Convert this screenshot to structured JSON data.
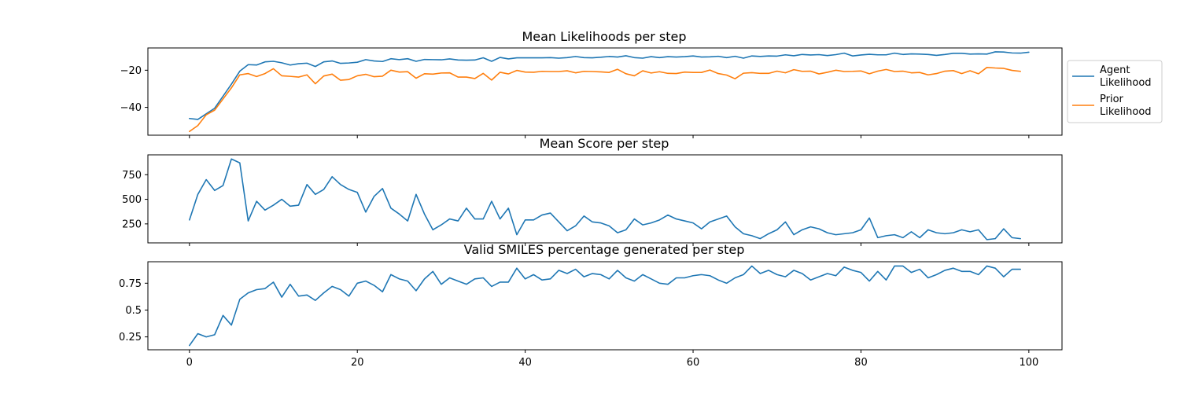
{
  "chart_data": [
    {
      "type": "line",
      "title": "Mean Likelihoods per step",
      "xlim": [
        -4.95,
        103.95
      ],
      "ylim": [
        -55,
        -8
      ],
      "yticks": [
        -40,
        -20
      ],
      "xticks": [
        0,
        20,
        40,
        60,
        80,
        100
      ],
      "show_xtick_labels": false,
      "grid": false,
      "legend_placement": "outside-right",
      "series": [
        {
          "name": "Agent\nLikelihood",
          "color": "#1f77b4",
          "y": [
            -46,
            -46.5,
            -43.5,
            -40.5,
            -34,
            -27.5,
            -20.5,
            -17,
            -17.2,
            -15.5,
            -15.2,
            -16,
            -17.2,
            -16.5,
            -16.2,
            -18,
            -15.5,
            -15,
            -16.3,
            -16.1,
            -15.7,
            -14.3,
            -15,
            -15.3,
            -13.8,
            -14.3,
            -13.8,
            -15.2,
            -14.2,
            -14.3,
            -14.4,
            -13.9,
            -14.5,
            -14.6,
            -14.5,
            -13.3,
            -15.2,
            -13.1,
            -13.9,
            -13.3,
            -13.3,
            -13.3,
            -13.3,
            -13.2,
            -13.5,
            -13.2,
            -12.6,
            -13.2,
            -13.3,
            -13,
            -12.6,
            -12.9,
            -12.2,
            -13.2,
            -13.5,
            -12.7,
            -13.2,
            -12.7,
            -12.9,
            -12.7,
            -12.3,
            -12.9,
            -12.8,
            -12.5,
            -13.2,
            -12.5,
            -13.5,
            -12.3,
            -12.6,
            -12.3,
            -12.4,
            -11.7,
            -12.2,
            -11.5,
            -11.8,
            -11.6,
            -12.1,
            -11.6,
            -10.8,
            -12.3,
            -11.8,
            -11.4,
            -11.7,
            -11.7,
            -10.8,
            -11.5,
            -11.2,
            -11.3,
            -11.5,
            -12,
            -11.5,
            -10.9,
            -10.9,
            -11.3,
            -11.2,
            -11.3,
            -10.1,
            -10.2,
            -10.7,
            -10.8,
            -10.3
          ]
        },
        {
          "name": "Prior\nLikelihood",
          "color": "#ff7f0e",
          "y": [
            -53,
            -49.8,
            -44,
            -41.5,
            -35.5,
            -29.5,
            -22.5,
            -21.8,
            -23.4,
            -21.8,
            -19.2,
            -23,
            -23.3,
            -23.7,
            -22.5,
            -27.3,
            -23.1,
            -22.1,
            -25.4,
            -25,
            -23,
            -22.2,
            -23.5,
            -23.2,
            -20,
            -21,
            -20.8,
            -24.3,
            -21.9,
            -22.1,
            -21.5,
            -21.4,
            -23.7,
            -23.7,
            -24.5,
            -21.7,
            -25.3,
            -21.1,
            -22,
            -20.1,
            -21,
            -21.1,
            -20.6,
            -20.7,
            -20.7,
            -20.3,
            -21.4,
            -20.6,
            -20.7,
            -20.9,
            -21.2,
            -19.5,
            -21.9,
            -23,
            -20.3,
            -21.5,
            -20.8,
            -21.7,
            -21.8,
            -21,
            -21.2,
            -21.2,
            -19.9,
            -21.8,
            -22.6,
            -24.6,
            -21.6,
            -21.3,
            -21.7,
            -21.7,
            -20.5,
            -21.4,
            -19.7,
            -20.6,
            -20.5,
            -22,
            -21.1,
            -20,
            -20.7,
            -20.6,
            -20.4,
            -21.9,
            -20.5,
            -19.6,
            -20.7,
            -20.5,
            -21.4,
            -21.2,
            -22.5,
            -21.8,
            -20.5,
            -20.2,
            -21.8,
            -20.3,
            -21.9,
            -18.5,
            -18.8,
            -19,
            -20.1,
            -20.6
          ]
        }
      ]
    },
    {
      "type": "line",
      "title": "Mean Score per step",
      "xlim": [
        -4.95,
        103.95
      ],
      "ylim": [
        57,
        952
      ],
      "yticks": [
        250,
        500,
        750
      ],
      "xticks": [
        0,
        20,
        40,
        60,
        80,
        100
      ],
      "show_xtick_labels": false,
      "grid": false,
      "series": [
        {
          "color": "#1f77b4",
          "y": [
            290,
            550,
            700,
            590,
            640,
            910,
            870,
            280,
            480,
            390,
            440,
            500,
            430,
            440,
            650,
            550,
            600,
            730,
            650,
            600,
            570,
            370,
            530,
            610,
            410,
            350,
            280,
            550,
            350,
            190,
            240,
            300,
            280,
            410,
            300,
            300,
            480,
            300,
            410,
            140,
            290,
            290,
            340,
            360,
            270,
            180,
            230,
            330,
            270,
            260,
            230,
            160,
            190,
            300,
            240,
            260,
            290,
            340,
            300,
            280,
            260,
            200,
            270,
            300,
            330,
            220,
            150,
            130,
            100,
            150,
            190,
            270,
            140,
            190,
            220,
            200,
            160,
            140,
            150,
            160,
            190,
            310,
            110,
            130,
            140,
            110,
            170,
            110,
            190,
            160,
            150,
            160,
            190,
            170,
            190,
            90,
            100,
            200,
            110,
            100
          ]
        }
      ]
    },
    {
      "type": "line",
      "title": "Valid SMILES percentage generated per step",
      "xlim": [
        -4.95,
        103.95
      ],
      "ylim": [
        0.13,
        0.95
      ],
      "yticks": [
        0.25,
        0.5,
        0.75
      ],
      "xticks": [
        0,
        20,
        40,
        60,
        80,
        100
      ],
      "xtick_labels": [
        "0",
        "20",
        "40",
        "60",
        "80",
        "100"
      ],
      "show_xtick_labels": true,
      "grid": false,
      "series": [
        {
          "color": "#1f77b4",
          "y": [
            0.17,
            0.28,
            0.25,
            0.27,
            0.45,
            0.36,
            0.6,
            0.66,
            0.69,
            0.7,
            0.76,
            0.62,
            0.74,
            0.63,
            0.64,
            0.59,
            0.66,
            0.72,
            0.69,
            0.63,
            0.75,
            0.77,
            0.73,
            0.67,
            0.83,
            0.79,
            0.77,
            0.68,
            0.79,
            0.86,
            0.74,
            0.8,
            0.77,
            0.74,
            0.79,
            0.8,
            0.72,
            0.76,
            0.76,
            0.89,
            0.79,
            0.83,
            0.78,
            0.79,
            0.87,
            0.84,
            0.88,
            0.81,
            0.84,
            0.83,
            0.79,
            0.87,
            0.8,
            0.77,
            0.83,
            0.79,
            0.75,
            0.74,
            0.8,
            0.8,
            0.82,
            0.83,
            0.82,
            0.78,
            0.75,
            0.8,
            0.83,
            0.91,
            0.84,
            0.87,
            0.83,
            0.81,
            0.87,
            0.84,
            0.78,
            0.81,
            0.84,
            0.82,
            0.9,
            0.87,
            0.85,
            0.77,
            0.86,
            0.78,
            0.91,
            0.91,
            0.85,
            0.88,
            0.8,
            0.83,
            0.87,
            0.89,
            0.86,
            0.86,
            0.83,
            0.91,
            0.89,
            0.81,
            0.88,
            0.88
          ]
        }
      ]
    }
  ]
}
